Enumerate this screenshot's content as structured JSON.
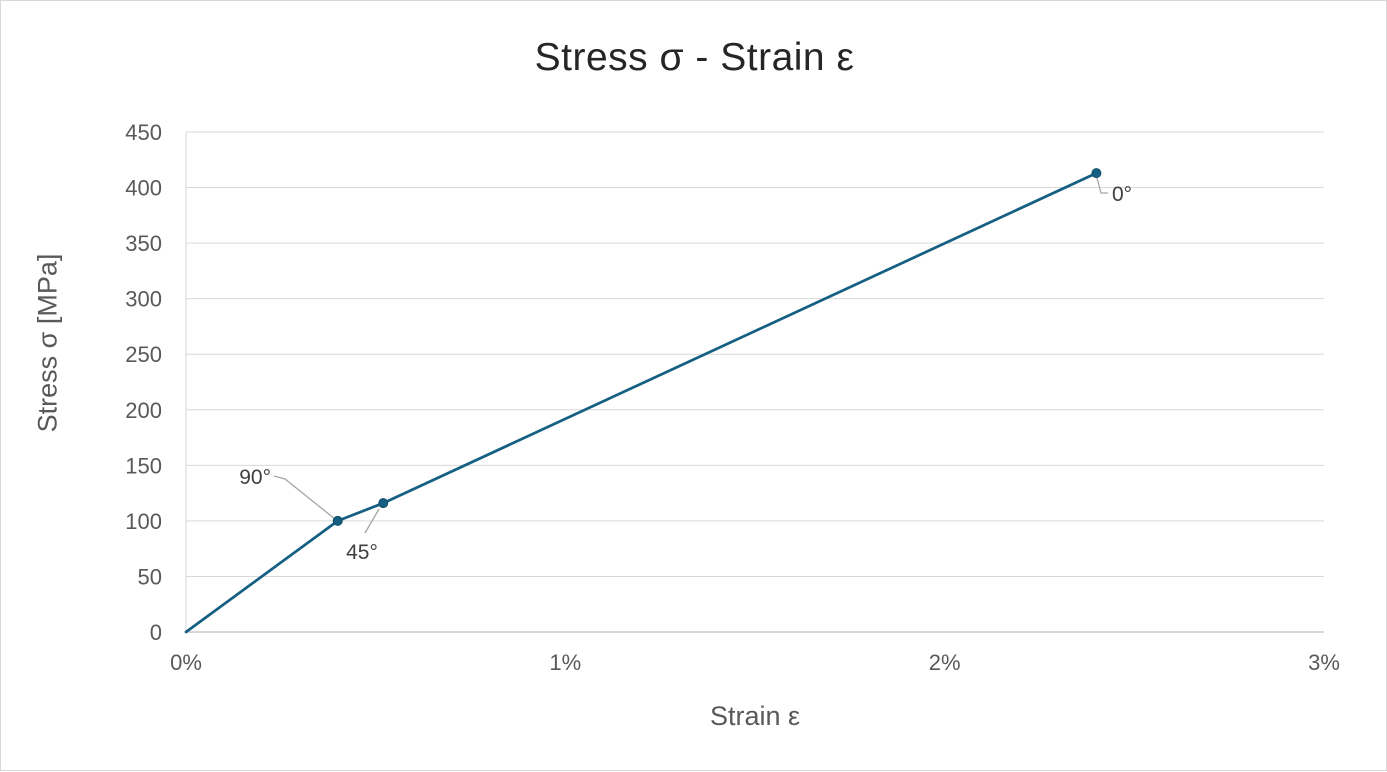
{
  "chart_data": {
    "type": "line",
    "title": "Stress σ - Strain ε",
    "xlabel": "Strain ε",
    "ylabel": "Stress σ [MPa]",
    "x_ticks": [
      "0%",
      "1%",
      "2%",
      "3%"
    ],
    "x_tick_values": [
      0,
      1,
      2,
      3
    ],
    "xlim": [
      0,
      3
    ],
    "y_ticks": [
      0,
      50,
      100,
      150,
      200,
      250,
      300,
      350,
      400,
      450
    ],
    "ylim": [
      0,
      450
    ],
    "grid": "horizontal",
    "legend": "none",
    "series": [
      {
        "name": "stress-strain-curve",
        "color": "#156082",
        "marker": "circle",
        "points": [
          {
            "x": 0.0,
            "y": 0
          },
          {
            "x": 0.4,
            "y": 100,
            "label": "90°"
          },
          {
            "x": 0.52,
            "y": 116,
            "label": "45°"
          },
          {
            "x": 2.4,
            "y": 413,
            "label": "0°"
          }
        ]
      }
    ],
    "colors": {
      "series": "#156082",
      "marker_stroke": "#114E68",
      "gridline": "#D9D9D9",
      "axis_line": "#BFBFBF",
      "tick_text": "#595959",
      "title_text": "#262626",
      "label_text": "#404040",
      "leader_line": "#A6A6A6",
      "border": "#D8D8D8"
    }
  }
}
